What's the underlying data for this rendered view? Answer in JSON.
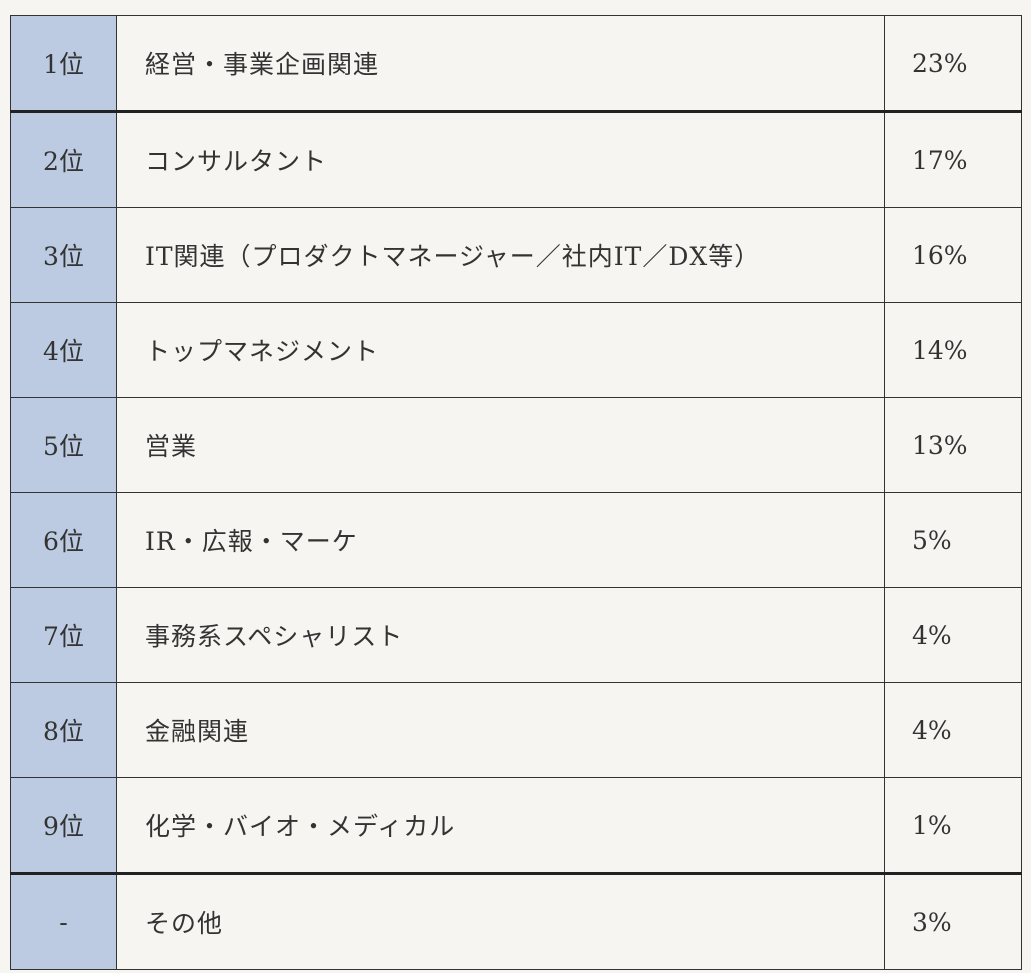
{
  "table": {
    "rows": [
      {
        "rank": "1位",
        "category": "経営・事業企画関連",
        "percent": "23%"
      },
      {
        "rank": "2位",
        "category": "コンサルタント",
        "percent": "17%"
      },
      {
        "rank": "3位",
        "category": "IT関連（プロダクトマネージャー／社内IT／DX等）",
        "percent": "16%"
      },
      {
        "rank": "4位",
        "category": "トップマネジメント",
        "percent": "14%"
      },
      {
        "rank": "5位",
        "category": "営業",
        "percent": "13%"
      },
      {
        "rank": "6位",
        "category": "IR・広報・マーケ",
        "percent": "5%"
      },
      {
        "rank": "7位",
        "category": "事務系スペシャリスト",
        "percent": "4%"
      },
      {
        "rank": "8位",
        "category": "金融関連",
        "percent": "4%"
      },
      {
        "rank": "9位",
        "category": "化学・バイオ・メディカル",
        "percent": "1%"
      },
      {
        "rank": "-",
        "category": "その他",
        "percent": "3%"
      }
    ]
  },
  "colors": {
    "rank_column_bg": "#bccbe2",
    "page_bg": "#f7f5f2",
    "border": "#333333"
  }
}
